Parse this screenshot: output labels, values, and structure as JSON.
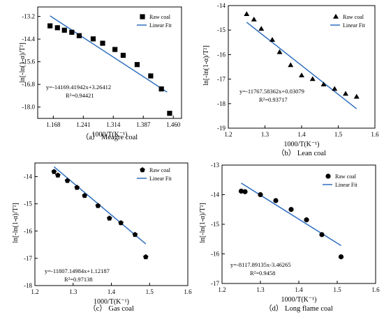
{
  "chart_data": [
    {
      "type": "scatter",
      "caption": "（a） Meagre coal",
      "xlabel": "1000/T(K⁻¹)",
      "ylabel": "ln[-ln(1-α)/T²]",
      "xlim": [
        1.13,
        1.48
      ],
      "ylim": [
        -18.6,
        -12.7
      ],
      "xticks": [
        1.168,
        1.241,
        1.314,
        1.387,
        1.46
      ],
      "xtick_labels": [
        "1.168",
        "1.241",
        "1.314",
        "1.387",
        "1.460"
      ],
      "yticks": [
        -13.2,
        -14.4,
        -15.6,
        -16.8,
        -18.0
      ],
      "ytick_labels": [
        "-13.2",
        "-14.4",
        "-15.6",
        "-16.8",
        "-18.0"
      ],
      "marker": "square",
      "legend": {
        "position": "top-right",
        "series": "Raw coal",
        "fit": "Linear Fit"
      },
      "series": [
        {
          "name": "Raw coal",
          "x": [
            1.16,
            1.178,
            1.195,
            1.213,
            1.231,
            1.265,
            1.288,
            1.318,
            1.338,
            1.372,
            1.405,
            1.431,
            1.451
          ],
          "y": [
            -13.7,
            -13.8,
            -13.93,
            -14.04,
            -14.22,
            -14.39,
            -14.62,
            -14.95,
            -15.26,
            -15.75,
            -16.35,
            -17.04,
            -18.33
          ]
        }
      ],
      "fit": {
        "slope": -14169.41942,
        "intercept": 3.26412,
        "x": [
          1.16,
          1.445
        ],
        "y": [
          -13.17,
          -17.21
        ]
      },
      "equation": "y=-14169.41942x+3.26412",
      "r2": "R²=0.94421"
    },
    {
      "type": "scatter",
      "caption": "（b） Lean coal",
      "xlabel": "1000/T(K⁻¹)",
      "ylabel": "ln[-ln(1-α)/T²]",
      "xlim": [
        1.2,
        1.6
      ],
      "ylim": [
        -19,
        -14
      ],
      "xticks": [
        1.2,
        1.3,
        1.4,
        1.5,
        1.6
      ],
      "xtick_labels": [
        "1.2",
        "1.3",
        "1.4",
        "1.5",
        "1.6"
      ],
      "yticks": [
        -14,
        -15,
        -16,
        -17,
        -18,
        -19
      ],
      "ytick_labels": [
        "-14",
        "-15",
        "-16",
        "-17",
        "-18",
        "-19"
      ],
      "marker": "triangle",
      "legend": {
        "position": "top-right",
        "series": "Raw coal",
        "fit": "Linear Fit"
      },
      "series": [
        {
          "name": "Raw coal",
          "x": [
            1.25,
            1.27,
            1.29,
            1.32,
            1.34,
            1.37,
            1.4,
            1.43,
            1.46,
            1.49,
            1.52,
            1.55
          ],
          "y": [
            -14.35,
            -14.57,
            -14.95,
            -15.4,
            -15.9,
            -16.43,
            -16.85,
            -17.0,
            -17.22,
            -17.4,
            -17.6,
            -17.72
          ]
        }
      ],
      "fit": {
        "slope": -11767.58362,
        "intercept": 0.03079,
        "x": [
          1.25,
          1.55
        ],
        "y": [
          -14.68,
          -18.21
        ]
      },
      "equation": "y=-11767.58362x+0.03079",
      "r2": "R²=0.93717"
    },
    {
      "type": "scatter",
      "caption": "（c） Gas coal",
      "xlabel": "1000/T(K⁻¹)",
      "ylabel": "ln[-ln(1-α)/T²]",
      "xlim": [
        1.2,
        1.6
      ],
      "ylim": [
        -18,
        -13.5
      ],
      "xticks": [
        1.2,
        1.3,
        1.4,
        1.5,
        1.6
      ],
      "xtick_labels": [
        "1.2",
        "1.3",
        "1.4",
        "1.5",
        "1.6"
      ],
      "yticks": [
        -14,
        -15,
        -16,
        -17,
        -18
      ],
      "ytick_labels": [
        "-14",
        "-15",
        "-16",
        "-17",
        "-18"
      ],
      "marker": "pentagon",
      "legend": {
        "position": "top-right",
        "series": "Raw coal",
        "fit": "Linear Fit"
      },
      "series": [
        {
          "name": "Raw coal",
          "x": [
            1.25,
            1.26,
            1.285,
            1.31,
            1.33,
            1.365,
            1.395,
            1.425,
            1.462,
            1.49
          ],
          "y": [
            -13.82,
            -13.95,
            -14.15,
            -14.4,
            -14.7,
            -15.07,
            -15.53,
            -15.7,
            -16.13,
            -16.95
          ]
        }
      ],
      "fit": {
        "slope": -11807.14984,
        "intercept": 1.12187,
        "x": [
          1.25,
          1.49
        ],
        "y": [
          -13.64,
          -16.47
        ]
      },
      "equation": "y=-11807.14984x+1.12187",
      "r2": "R²=0.97138"
    },
    {
      "type": "scatter",
      "caption": "（d） Long flame coal",
      "xlabel": "1000/T(K⁻¹)",
      "ylabel": "ln[-ln(1-α)/T²]",
      "xlim": [
        1.2,
        1.6
      ],
      "ylim": [
        -17,
        -13
      ],
      "xticks": [
        1.2,
        1.3,
        1.4,
        1.5,
        1.6
      ],
      "xtick_labels": [
        "1.2",
        "1.3",
        "1.4",
        "1.5",
        "1.6"
      ],
      "yticks": [
        -13,
        -14,
        -15,
        -16,
        -17
      ],
      "ytick_labels": [
        "-13",
        "-14",
        "-15",
        "-16",
        "-17"
      ],
      "marker": "circle",
      "legend": {
        "position": "top-right",
        "series": "Raw coal",
        "fit": "Linear Fit"
      },
      "series": [
        {
          "name": "Raw coal",
          "x": [
            1.25,
            1.26,
            1.3,
            1.34,
            1.38,
            1.42,
            1.46,
            1.51
          ],
          "y": [
            -13.88,
            -13.9,
            -14.0,
            -14.2,
            -14.5,
            -14.85,
            -15.35,
            -16.1
          ]
        }
      ],
      "fit": {
        "slope": -8117.89135,
        "intercept": -3.46265,
        "x": [
          1.25,
          1.51
        ],
        "y": [
          -13.61,
          -15.72
        ]
      },
      "equation": "y=-8117.89135x-3.46265",
      "r2": "R²=0.9458"
    }
  ],
  "colors": {
    "fit_line": "#2f6fc0",
    "marker": "#000000",
    "axis": "#000000"
  }
}
